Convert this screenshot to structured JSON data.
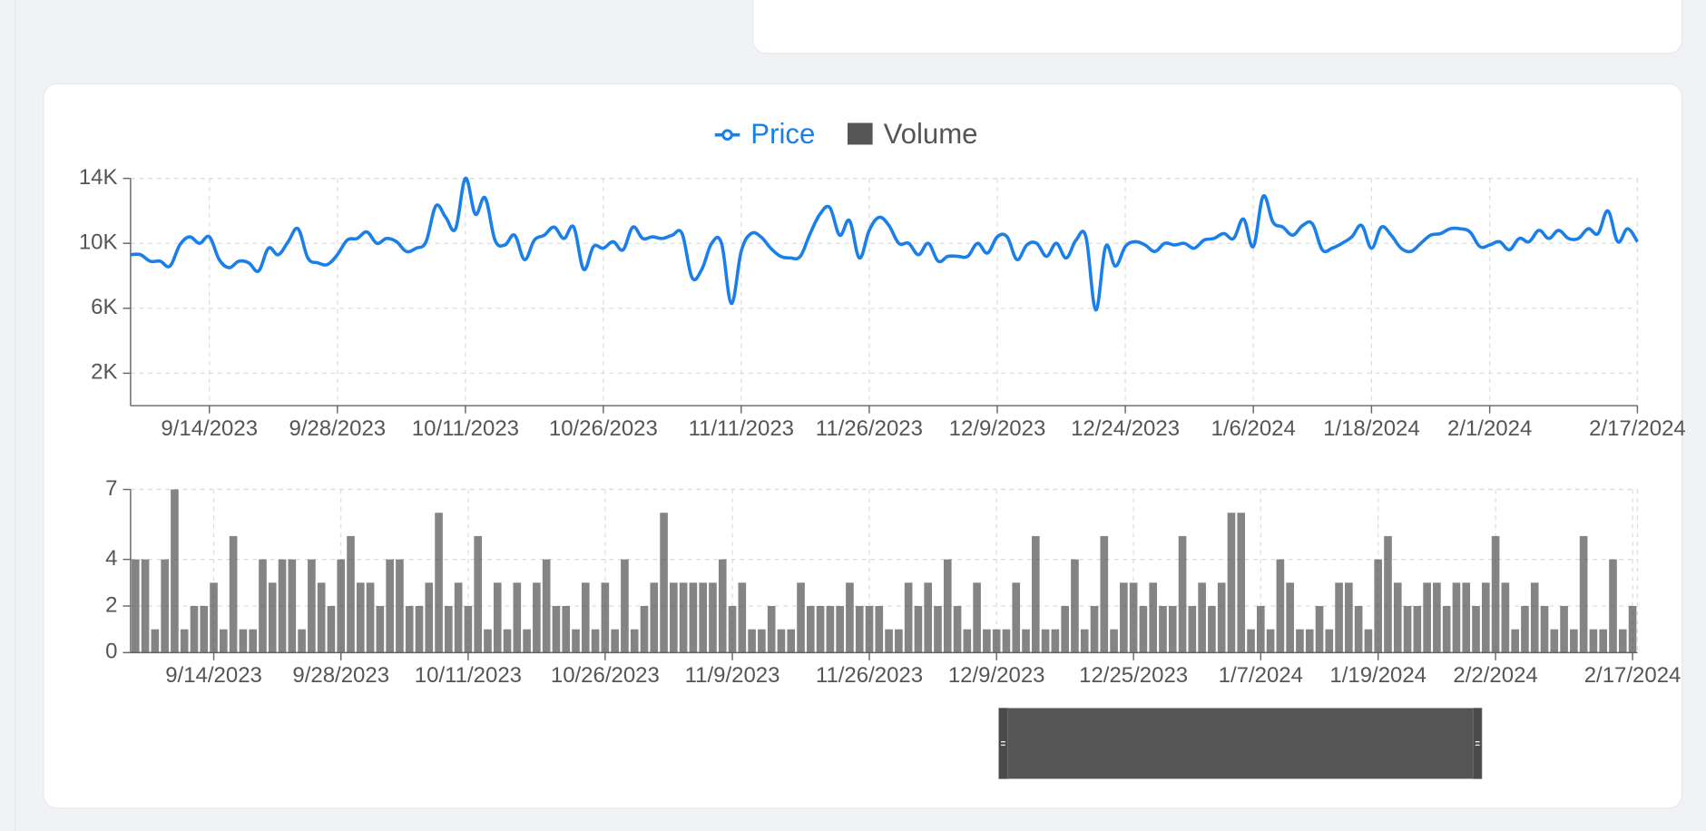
{
  "chart_data": [
    {
      "type": "line",
      "categories": [
        "9/6/2023",
        "9/7/2023",
        "9/8/2023",
        "9/9/2023",
        "9/10/2023",
        "9/11/2023",
        "9/12/2023",
        "9/13/2023",
        "9/14/2023",
        "9/15/2023",
        "9/16/2023",
        "9/17/2023",
        "9/18/2023",
        "9/19/2023",
        "9/20/2023",
        "9/21/2023",
        "9/23/2023",
        "9/24/2023",
        "9/25/2023",
        "9/26/2023",
        "9/27/2023",
        "9/28/2023",
        "9/29/2023",
        "9/30/2023",
        "10/1/2023",
        "10/2/2023",
        "10/3/2023",
        "10/4/2023",
        "10/5/2023",
        "10/6/2023",
        "10/7/2023",
        "10/8/2023",
        "10/9/2023",
        "10/10/2023",
        "10/11/2023",
        "10/12/2023",
        "10/13/2023",
        "10/14/2023",
        "10/15/2023",
        "10/16/2023",
        "10/17/2023",
        "10/19/2023",
        "10/20/2023",
        "10/21/2023",
        "10/22/2023",
        "10/23/2023",
        "10/24/2023",
        "10/25/2023",
        "10/26/2023",
        "10/27/2023",
        "10/28/2023",
        "10/29/2023",
        "10/30/2023",
        "10/31/2023",
        "11/1/2023",
        "11/3/2023",
        "11/4/2023",
        "11/5/2023",
        "11/6/2023",
        "11/7/2023",
        "11/8/2023",
        "11/9/2023",
        "11/11/2023",
        "11/12/2023",
        "11/13/2023",
        "11/14/2023",
        "11/16/2023",
        "11/17/2023",
        "11/18/2023",
        "11/19/2023",
        "11/21/2023",
        "11/22/2023",
        "11/23/2023",
        "11/24/2023",
        "11/25/2023",
        "11/26/2023",
        "11/27/2023",
        "11/28/2023",
        "11/29/2023",
        "11/30/2023",
        "12/1/2023",
        "12/2/2023",
        "12/3/2023",
        "12/4/2023",
        "12/5/2023",
        "12/6/2023",
        "12/7/2023",
        "12/8/2023",
        "12/9/2023",
        "12/10/2023",
        "12/11/2023",
        "12/12/2023",
        "12/14/2023",
        "12/15/2023",
        "12/16/2023",
        "12/17/2023",
        "12/19/2023",
        "12/20/2023",
        "12/21/2023",
        "12/22/2023",
        "12/23/2023",
        "12/24/2023",
        "12/25/2023",
        "12/26/2023",
        "12/27/2023",
        "12/28/2023",
        "12/29/2023",
        "12/30/2023",
        "12/31/2023",
        "1/1/2024",
        "1/2/2024",
        "1/3/2024",
        "1/4/2024",
        "1/5/2024",
        "1/6/2024",
        "1/7/2024",
        "1/8/2024",
        "1/9/2024",
        "1/10/2024",
        "1/11/2024",
        "1/12/2024",
        "1/13/2024",
        "1/14/2024",
        "1/15/2024",
        "1/16/2024",
        "1/17/2024",
        "1/18/2024",
        "1/19/2024",
        "1/20/2024",
        "1/21/2024",
        "1/23/2024",
        "1/24/2024",
        "1/25/2024",
        "1/26/2024",
        "1/28/2024",
        "1/29/2024",
        "1/30/2024",
        "1/31/2024",
        "2/1/2024",
        "2/2/2024",
        "2/3/2024",
        "2/4/2024",
        "2/5/2024",
        "2/6/2024",
        "2/7/2024",
        "2/8/2024",
        "2/10/2024",
        "2/11/2024",
        "2/12/2024",
        "2/13/2024",
        "2/14/2024",
        "2/15/2024",
        "2/16/2024",
        "2/17/2024"
      ],
      "series": [
        {
          "name": "Price",
          "color": "#1a7fe8",
          "values": [
            9300,
            9300,
            8900,
            8900,
            8600,
            9900,
            10400,
            10000,
            10400,
            9000,
            8500,
            8900,
            8800,
            8300,
            9700,
            9300,
            10100,
            10900,
            9100,
            8800,
            8700,
            9300,
            10200,
            10300,
            10700,
            10000,
            10300,
            10100,
            9500,
            9700,
            10100,
            12300,
            11600,
            10900,
            14000,
            11800,
            12800,
            10200,
            9900,
            10500,
            9000,
            10200,
            10500,
            11000,
            10300,
            11000,
            8400,
            9800,
            9700,
            10100,
            9600,
            11000,
            10300,
            10400,
            10300,
            10500,
            10600,
            7900,
            8400,
            10000,
            10000,
            6300,
            9500,
            10600,
            10400,
            9700,
            9200,
            9100,
            9200,
            10600,
            11800,
            12200,
            10500,
            11400,
            9100,
            10800,
            11600,
            11100,
            10000,
            10000,
            9300,
            10000,
            8900,
            9200,
            9200,
            9200,
            10000,
            9400,
            10400,
            10400,
            9000,
            9900,
            10000,
            9200,
            10000,
            9100,
            10200,
            10400,
            5900,
            9800,
            8600,
            9800,
            10100,
            9900,
            9500,
            10000,
            9900,
            10000,
            9700,
            10200,
            10300,
            10600,
            10300,
            11500,
            9800,
            12900,
            11300,
            11000,
            10500,
            11100,
            11200,
            9600,
            9700,
            10000,
            10400,
            11100,
            9700,
            11000,
            10500,
            9700,
            9500,
            10000,
            10500,
            10600,
            10900,
            10900,
            10700,
            9800,
            9900,
            10100,
            9600,
            10300,
            10100,
            10800,
            10300,
            10800,
            10300,
            10300,
            10900,
            10600,
            12000,
            10100,
            10900,
            10100
          ]
        }
      ],
      "ylim": [
        0,
        14000
      ],
      "yticks": [
        {
          "value": 2000,
          "label": "2K"
        },
        {
          "value": 6000,
          "label": "6K"
        },
        {
          "value": 10000,
          "label": "10K"
        },
        {
          "value": 14000,
          "label": "14K"
        }
      ],
      "xticks": [
        "9/14/2023",
        "9/28/2023",
        "10/11/2023",
        "10/26/2023",
        "11/11/2023",
        "11/26/2023",
        "12/9/2023",
        "12/24/2023",
        "1/6/2024",
        "1/18/2024",
        "2/1/2024",
        "2/17/2024"
      ],
      "grid": true
    },
    {
      "type": "bar",
      "categories": [
        "9/6/2023",
        "9/7/2023",
        "9/8/2023",
        "9/9/2023",
        "9/10/2023",
        "9/11/2023",
        "9/12/2023",
        "9/13/2023",
        "9/14/2023",
        "9/15/2023",
        "9/16/2023",
        "9/17/2023",
        "9/18/2023",
        "9/19/2023",
        "9/20/2023",
        "9/21/2023",
        "9/23/2023",
        "9/24/2023",
        "9/25/2023",
        "9/26/2023",
        "9/27/2023",
        "9/28/2023",
        "9/29/2023",
        "9/30/2023",
        "10/1/2023",
        "10/2/2023",
        "10/3/2023",
        "10/4/2023",
        "10/5/2023",
        "10/6/2023",
        "10/7/2023",
        "10/8/2023",
        "10/9/2023",
        "10/10/2023",
        "10/11/2023",
        "10/12/2023",
        "10/13/2023",
        "10/14/2023",
        "10/15/2023",
        "10/16/2023",
        "10/17/2023",
        "10/19/2023",
        "10/20/2023",
        "10/21/2023",
        "10/22/2023",
        "10/23/2023",
        "10/24/2023",
        "10/25/2023",
        "10/26/2023",
        "10/27/2023",
        "10/28/2023",
        "10/29/2023",
        "10/30/2023",
        "10/31/2023",
        "11/1/2023",
        "11/3/2023",
        "11/4/2023",
        "11/5/2023",
        "11/6/2023",
        "11/7/2023",
        "11/8/2023",
        "11/9/2023",
        "11/11/2023",
        "11/12/2023",
        "11/13/2023",
        "11/14/2023",
        "11/16/2023",
        "11/17/2023",
        "11/18/2023",
        "11/19/2023",
        "11/21/2023",
        "11/22/2023",
        "11/23/2023",
        "11/24/2023",
        "11/25/2023",
        "11/26/2023",
        "11/27/2023",
        "11/28/2023",
        "11/29/2023",
        "11/30/2023",
        "12/1/2023",
        "12/2/2023",
        "12/3/2023",
        "12/4/2023",
        "12/5/2023",
        "12/6/2023",
        "12/7/2023",
        "12/8/2023",
        "12/9/2023",
        "12/10/2023",
        "12/11/2023",
        "12/12/2023",
        "12/14/2023",
        "12/15/2023",
        "12/16/2023",
        "12/17/2023",
        "12/19/2023",
        "12/20/2023",
        "12/21/2023",
        "12/22/2023",
        "12/23/2023",
        "12/24/2023",
        "12/25/2023",
        "12/26/2023",
        "12/27/2023",
        "12/28/2023",
        "12/29/2023",
        "12/30/2023",
        "12/31/2023",
        "1/1/2024",
        "1/2/2024",
        "1/3/2024",
        "1/4/2024",
        "1/5/2024",
        "1/6/2024",
        "1/7/2024",
        "1/8/2024",
        "1/9/2024",
        "1/10/2024",
        "1/11/2024",
        "1/12/2024",
        "1/13/2024",
        "1/14/2024",
        "1/15/2024",
        "1/16/2024",
        "1/17/2024",
        "1/18/2024",
        "1/19/2024",
        "1/20/2024",
        "1/21/2024",
        "1/23/2024",
        "1/24/2024",
        "1/25/2024",
        "1/26/2024",
        "1/28/2024",
        "1/29/2024",
        "1/30/2024",
        "1/31/2024",
        "2/1/2024",
        "2/2/2024",
        "2/3/2024",
        "2/4/2024",
        "2/5/2024",
        "2/6/2024",
        "2/7/2024",
        "2/8/2024",
        "2/10/2024",
        "2/11/2024",
        "2/12/2024",
        "2/13/2024",
        "2/14/2024",
        "2/15/2024",
        "2/16/2024",
        "2/17/2024"
      ],
      "series": [
        {
          "name": "Volume",
          "color": "#555555",
          "values": [
            4,
            4,
            1,
            4,
            7,
            1,
            2,
            2,
            3,
            1,
            5,
            1,
            1,
            4,
            3,
            4,
            4,
            1,
            4,
            3,
            2,
            4,
            5,
            3,
            3,
            2,
            4,
            4,
            2,
            2,
            3,
            6,
            2,
            3,
            2,
            5,
            1,
            3,
            1,
            3,
            1,
            3,
            4,
            2,
            2,
            1,
            3,
            1,
            3,
            1,
            4,
            1,
            2,
            3,
            6,
            3,
            3,
            3,
            3,
            3,
            4,
            2,
            3,
            1,
            1,
            2,
            1,
            1,
            3,
            2,
            2,
            2,
            2,
            3,
            2,
            2,
            2,
            1,
            1,
            3,
            2,
            3,
            2,
            4,
            2,
            1,
            3,
            1,
            1,
            1,
            3,
            1,
            5,
            1,
            1,
            2,
            4,
            1,
            2,
            5,
            1,
            3,
            3,
            2,
            3,
            2,
            2,
            5,
            2,
            3,
            2,
            3,
            6,
            6,
            1,
            2,
            1,
            4,
            3,
            1,
            1,
            2,
            1,
            3,
            3,
            2,
            1,
            4,
            5,
            3,
            2,
            2,
            3,
            3,
            2,
            3,
            3,
            2,
            3,
            5,
            3,
            1,
            2,
            3,
            2,
            1,
            2,
            1,
            5,
            1,
            1,
            4,
            1,
            2
          ]
        }
      ],
      "ylim": [
        0,
        7
      ],
      "yticks": [
        0,
        2,
        4,
        7
      ],
      "xticks": [
        "9/14/2023",
        "9/28/2023",
        "10/11/2023",
        "10/26/2023",
        "11/9/2023",
        "11/26/2023",
        "12/9/2023",
        "12/25/2023",
        "1/7/2024",
        "1/19/2024",
        "2/2/2024",
        "2/17/2024"
      ],
      "grid": true
    }
  ]
}
